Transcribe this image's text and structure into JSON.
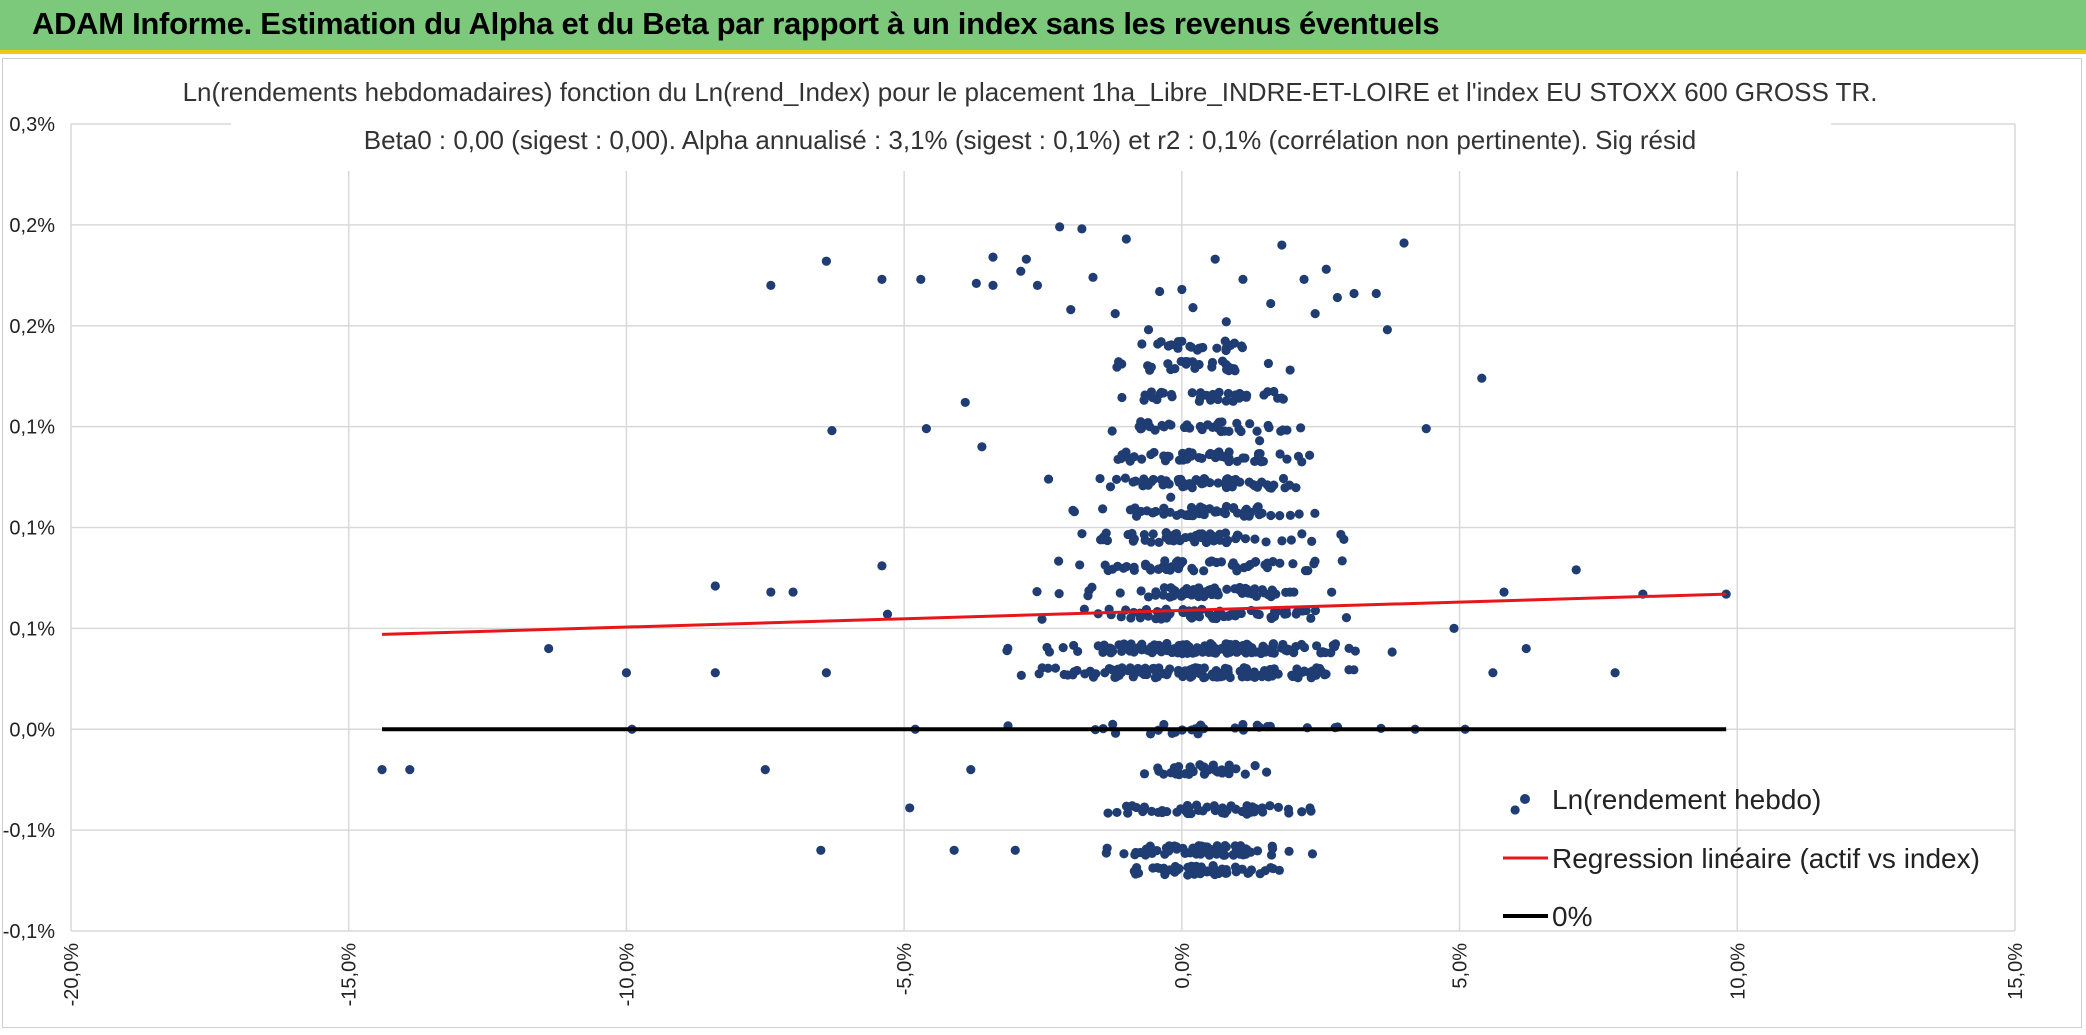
{
  "banner": {
    "title": "ADAM Informe. Estimation du Alpha et du Beta par rapport à un index sans les revenus éventuels"
  },
  "colors": {
    "banner_bg": "#7dc97b",
    "accent": "#f5c518",
    "points": "#1f3d73",
    "regression": "#e8161b",
    "zero_line": "#000000",
    "grid": "#d9d9d9"
  },
  "chart_data": {
    "type": "scatter",
    "title_line1": "Ln(rendements hebdomadaires) fonction du Ln(rend_Index) pour le placement 1ha_Libre_INDRE-ET-LOIRE et l'index EU STOXX 600 GROSS TR.",
    "title_line2": "Beta0 : 0,00 (sigest : 0,00). Alpha annualisé : 3,1% (sigest : 0,1%) et r2 : 0,1% (corrélation non pertinente). Sig résid",
    "xlim": [
      -0.2,
      0.15
    ],
    "ylim": [
      -0.001,
      0.003
    ],
    "x_ticks": [
      -0.2,
      -0.15,
      -0.1,
      -0.05,
      0.0,
      0.05,
      0.1,
      0.15
    ],
    "x_tick_labels": [
      "-20,0%",
      "-15,0%",
      "-10,0%",
      "-5,0%",
      "0,0%",
      "5,0%",
      "10,0%",
      "15,0%"
    ],
    "y_ticks": [
      -0.001,
      -0.0005,
      0.0,
      0.0005,
      0.001,
      0.0015,
      0.002,
      0.0025,
      0.003
    ],
    "y_tick_labels": [
      "-0,1%",
      "-0,1%",
      "0,0%",
      "0,1%",
      "0,1%",
      "0,1%",
      "0,2%",
      "0,2%",
      "0,3%"
    ],
    "regression": {
      "x": [
        -0.144,
        0.098
      ],
      "y": [
        0.00047,
        0.00067
      ]
    },
    "zero_line": {
      "x": [
        -0.144,
        0.098
      ],
      "y": [
        0.0,
        0.0
      ]
    },
    "legend": [
      {
        "label": "Ln(rendement hebdo)",
        "kind": "marker"
      },
      {
        "label": "Regression linéaire (actif vs index)",
        "kind": "regression"
      },
      {
        "label": "0%",
        "kind": "zero"
      }
    ],
    "series": [
      {
        "name": "Ln(rendement hebdo)",
        "points": [
          [
            -0.144,
            -0.0002
          ],
          [
            -0.139,
            -0.0002
          ],
          [
            -0.114,
            0.0004
          ],
          [
            -0.1,
            0.00028
          ],
          [
            -0.099,
            0.0
          ],
          [
            -0.084,
            0.00028
          ],
          [
            -0.084,
            0.00071
          ],
          [
            -0.075,
            -0.0002
          ],
          [
            -0.074,
            0.00068
          ],
          [
            -0.074,
            0.0022
          ],
          [
            -0.07,
            0.00068
          ],
          [
            -0.065,
            -0.0006
          ],
          [
            -0.064,
            0.00028
          ],
          [
            -0.064,
            0.00232
          ],
          [
            -0.063,
            0.00148
          ],
          [
            -0.054,
            0.00081
          ],
          [
            -0.054,
            0.00223
          ],
          [
            -0.053,
            0.00057
          ],
          [
            -0.049,
            -0.00039
          ],
          [
            -0.048,
            0.0
          ],
          [
            -0.047,
            0.00223
          ],
          [
            -0.046,
            0.00149
          ],
          [
            -0.041,
            -0.0006
          ],
          [
            -0.039,
            0.00162
          ],
          [
            -0.038,
            -0.0002
          ],
          [
            -0.037,
            0.00221
          ],
          [
            -0.036,
            0.0014
          ],
          [
            -0.034,
            0.00234
          ],
          [
            -0.034,
            0.0022
          ],
          [
            -0.03,
            -0.0006
          ],
          [
            -0.029,
            0.00227
          ],
          [
            -0.028,
            0.00233
          ],
          [
            -0.026,
            0.0022
          ],
          [
            -0.024,
            0.00124
          ],
          [
            -0.022,
            0.00249
          ],
          [
            -0.02,
            0.00208
          ],
          [
            -0.018,
            0.00248
          ],
          [
            -0.016,
            0.00224
          ],
          [
            -0.012,
            0.00206
          ],
          [
            -0.01,
            0.00243
          ],
          [
            -0.006,
            0.00198
          ],
          [
            -0.004,
            0.00217
          ],
          [
            -0.002,
            0.00115
          ],
          [
            0.0,
            0.00218
          ],
          [
            0.002,
            0.00209
          ],
          [
            0.006,
            0.00233
          ],
          [
            0.008,
            0.00202
          ],
          [
            0.011,
            0.00223
          ],
          [
            0.014,
            0.00143
          ],
          [
            0.016,
            0.00211
          ],
          [
            0.018,
            0.0024
          ],
          [
            0.022,
            0.00223
          ],
          [
            0.024,
            0.00206
          ],
          [
            0.026,
            0.00228
          ],
          [
            0.028,
            0.00214
          ],
          [
            0.031,
            0.00216
          ],
          [
            0.035,
            0.00216
          ],
          [
            0.037,
            0.00198
          ],
          [
            0.04,
            0.00241
          ],
          [
            0.042,
            0.0
          ],
          [
            0.044,
            0.00149
          ],
          [
            0.049,
            0.0005
          ],
          [
            0.051,
            0.0
          ],
          [
            0.054,
            0.00174
          ],
          [
            0.056,
            0.00028
          ],
          [
            0.058,
            0.00068
          ],
          [
            0.062,
            0.0004
          ],
          [
            0.06,
            -0.0004
          ],
          [
            0.071,
            0.00079
          ],
          [
            0.078,
            0.00028
          ],
          [
            0.083,
            0.00067
          ],
          [
            0.098,
            0.00067
          ]
        ]
      }
    ]
  }
}
